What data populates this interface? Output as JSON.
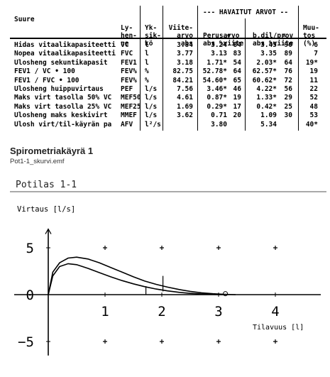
{
  "table": {
    "headers": {
      "suure": "Suure",
      "lyhenne": [
        "Ly-",
        "hen-",
        "ne"
      ],
      "yksikko": [
        "Yk-",
        "sik-",
        "kö"
      ],
      "viitearvo": [
        "Viite-",
        "arvo",
        "abs"
      ],
      "havaitut": "--- HAVAITUT ARVOT --",
      "perusarvo": [
        "Perusarvo",
        "abs %viite"
      ],
      "bdil": [
        "b.dil/prov",
        "abs %viite"
      ],
      "muutos": [
        "Muu-",
        "tos",
        "(%)"
      ]
    },
    "rows": [
      {
        "name": "Hidas vitaalikapasiteetti",
        "abbr": "VC",
        "unit": "l",
        "ref": "3.84",
        "base_abs": "3.24",
        "base_pct": "84",
        "post_abs": "3.45",
        "post_pct": "90",
        "change": "6"
      },
      {
        "name": "Nopea vitaalikapasiteetti",
        "abbr": "FVC",
        "unit": "l",
        "ref": "3.77",
        "base_abs": "3.13",
        "base_pct": "83",
        "post_abs": "3.35",
        "post_pct": "89",
        "change": "7"
      },
      {
        "name": "Ulosheng sekuntikapasit",
        "abbr": "FEV1",
        "unit": "l",
        "ref": "3.18",
        "base_abs": "1.71*",
        "base_pct": "54",
        "post_abs": "2.03*",
        "post_pct": "64",
        "change": "19*"
      },
      {
        "name": "FEV1 / VC • 100",
        "abbr": "FEV%",
        "unit": "%",
        "ref": "82.75",
        "base_abs": "52.78*",
        "base_pct": "64",
        "post_abs": "62.57*",
        "post_pct": "76",
        "change": "19"
      },
      {
        "name": "FEV1 / FVC • 100",
        "abbr": "FEV%",
        "unit": "%",
        "ref": "84.21",
        "base_abs": "54.60*",
        "base_pct": "65",
        "post_abs": "60.62*",
        "post_pct": "72",
        "change": "11"
      },
      {
        "name": "Ulosheng huippuvirtaus",
        "abbr": "PEF",
        "unit": "l/s",
        "ref": "7.56",
        "base_abs": "3.46*",
        "base_pct": "46",
        "post_abs": "4.22*",
        "post_pct": "56",
        "change": "22"
      },
      {
        "name": "Maks virt tasolla 50% VC",
        "abbr": "MEF50",
        "unit": "l/s",
        "ref": "4.61",
        "base_abs": "0.87*",
        "base_pct": "19",
        "post_abs": "1.33*",
        "post_pct": "29",
        "change": "52"
      },
      {
        "name": "Maks virt tasolla 25% VC",
        "abbr": "MEF25",
        "unit": "l/s",
        "ref": "1.69",
        "base_abs": "0.29*",
        "base_pct": "17",
        "post_abs": "0.42*",
        "post_pct": "25",
        "change": "48"
      },
      {
        "name": "Ulosheng maks keskivirt",
        "abbr": "MMEF",
        "unit": "l/s",
        "ref": "3.62",
        "base_abs": "0.71",
        "base_pct": "20",
        "post_abs": "1.09",
        "post_pct": "30",
        "change": "53"
      },
      {
        "name": "Ulosh virt/til-käyrän pa",
        "abbr": "AFV",
        "unit": "l²/s",
        "ref": "",
        "base_abs": "3.80",
        "base_pct": "",
        "post_abs": "5.34",
        "post_pct": "",
        "change": "40*"
      }
    ],
    "markers": {
      "base": "o",
      "post": "x"
    }
  },
  "caption": {
    "title": "Spirometriakäyrä 1",
    "file": "Pot1-1_skurvi.emf"
  },
  "chart_data": {
    "type": "line",
    "title": "Potilas 1-1",
    "ylabel": "Virtaus [l/s]",
    "xlabel": "Tilavuus [l]",
    "xlim": [
      0,
      4.8
    ],
    "ylim": [
      -6.5,
      7
    ],
    "x_ticks": [
      "1",
      "2",
      "3",
      "4"
    ],
    "y_ticks": [
      "5",
      "0",
      "-5"
    ],
    "series": [
      {
        "values_x": [
          0,
          0.08,
          0.2,
          0.35,
          0.5,
          0.7,
          0.9,
          1.1,
          1.3,
          1.5,
          1.7,
          1.9,
          2.1,
          2.3,
          2.5,
          2.7,
          2.9,
          3.1,
          3.3
        ],
        "values_y": [
          0,
          2.4,
          3.4,
          3.9,
          4.0,
          3.8,
          3.4,
          2.9,
          2.4,
          1.9,
          1.45,
          1.1,
          0.8,
          0.55,
          0.35,
          0.2,
          0.1,
          0.04,
          0
        ]
      },
      {
        "values_x": [
          0,
          0.08,
          0.2,
          0.35,
          0.5,
          0.7,
          0.9,
          1.1,
          1.3,
          1.5,
          1.7,
          1.9,
          2.1,
          2.3,
          2.5,
          2.7,
          2.9,
          3.1
        ],
        "values_y": [
          0,
          2.0,
          3.0,
          3.3,
          3.2,
          2.8,
          2.35,
          1.9,
          1.5,
          1.15,
          0.85,
          0.6,
          0.4,
          0.25,
          0.14,
          0.07,
          0.02,
          0
        ]
      }
    ],
    "reference_crosses": [
      [
        1,
        5
      ],
      [
        2,
        5
      ],
      [
        3,
        5
      ],
      [
        4,
        5
      ],
      [
        1,
        -5
      ],
      [
        2,
        -5
      ],
      [
        3,
        -5
      ],
      [
        4,
        -5
      ]
    ],
    "grid": false
  }
}
